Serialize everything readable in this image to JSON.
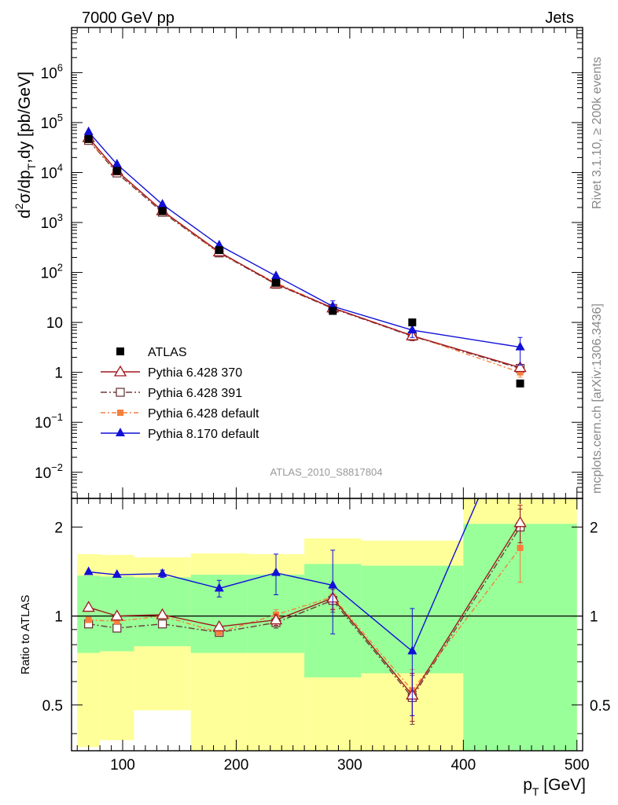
{
  "header": {
    "left": "7000 GeV pp",
    "right": "Jets"
  },
  "side_text": {
    "top": "Rivet 3.1.10, ≥ 200k events",
    "bottom": "mcplots.cern.ch [arXiv:1306.3436]"
  },
  "analysis_label": "ATLAS_2010_S8817804",
  "y_top_label": {
    "pre": "d",
    "sup": "2",
    "mid": "σ/dp",
    "sub": "T",
    "post": ",dy [pb/GeV]"
  },
  "y_bottom_label": "Ratio to ATLAS",
  "x_label": {
    "main": "p",
    "sub": "T",
    "post": " [GeV]"
  },
  "top_tick_labels": [
    {
      "v": 1000000.0,
      "base": "10",
      "exp": "6"
    },
    {
      "v": 100000.0,
      "base": "10",
      "exp": "5"
    },
    {
      "v": 10000.0,
      "base": "10",
      "exp": "4"
    },
    {
      "v": 1000.0,
      "base": "10",
      "exp": "3"
    },
    {
      "v": 100.0,
      "base": "10",
      "exp": "2"
    },
    {
      "v": 10,
      "base": "10",
      "exp": ""
    },
    {
      "v": 1,
      "base": "1",
      "exp": ""
    },
    {
      "v": 0.1,
      "base": "10",
      "exp": "−1"
    },
    {
      "v": 0.01,
      "base": "10",
      "exp": "−2"
    }
  ],
  "ratio_tick_labels": [
    {
      "v": 2,
      "text": "2"
    },
    {
      "v": 1,
      "text": "1"
    },
    {
      "v": 0.5,
      "text": "0.5"
    }
  ],
  "x_tick_labels": [
    {
      "v": 100,
      "text": "100"
    },
    {
      "v": 200,
      "text": "200"
    },
    {
      "v": 300,
      "text": "300"
    },
    {
      "v": 400,
      "text": "400"
    },
    {
      "v": 500,
      "text": "500"
    }
  ],
  "colors": {
    "atlas": "#000000",
    "p370": "#a0171d",
    "p391": "#6b3a3a",
    "pdef": "#f77f3c",
    "p8": "#1010d8",
    "band_inner": "#99ff99",
    "band_outer": "#ffff99"
  },
  "chart_data": [
    {
      "type": "line",
      "panel": "main",
      "log_y": true,
      "xlim": [
        55,
        505
      ],
      "ylim": [
        0.003,
        8000000
      ],
      "x": [
        70,
        95,
        135,
        185,
        235,
        285,
        355,
        450
      ],
      "legend_placement": "lower-left",
      "series": [
        {
          "name": "ATLAS",
          "style": "data",
          "values": [
            47000,
            10800,
            1700,
            280,
            62,
            17,
            10,
            0.6
          ],
          "err": [
            0,
            0,
            0,
            0,
            0,
            0,
            0,
            0
          ]
        },
        {
          "name": "Pythia 6.428 370",
          "style": "open-triangle",
          "values": [
            50000,
            10800,
            1720,
            258,
            59,
            19.5,
            5.4,
            1.25
          ],
          "err": [
            0,
            0,
            0,
            0,
            0,
            3,
            1,
            0.2
          ]
        },
        {
          "name": "Pythia 6.428 391",
          "style": "open-square",
          "values": [
            44000,
            9800,
            1600,
            246,
            58,
            19,
            5.3,
            1.2
          ],
          "err": [
            0,
            0,
            0,
            0,
            0,
            3,
            1,
            0.2
          ]
        },
        {
          "name": "Pythia 6.428 default",
          "style": "filled-square-dash",
          "values": [
            45000,
            10400,
            1690,
            247,
            62,
            19.5,
            5.5,
            1.0
          ],
          "err": [
            0,
            0,
            0,
            0,
            0,
            3,
            1,
            0.2
          ]
        },
        {
          "name": "Pythia 8.170 default",
          "style": "filled-triangle",
          "values": [
            65000,
            14600,
            2300,
            350,
            85,
            21,
            7,
            3.2
          ],
          "err": [
            0,
            0,
            0,
            0,
            0,
            6,
            2,
            1.8
          ]
        }
      ]
    },
    {
      "type": "line",
      "panel": "ratio",
      "log_y": true,
      "xlim": [
        55,
        505
      ],
      "ylim": [
        0.35,
        2.5
      ],
      "reference": 1,
      "x": [
        70,
        95,
        135,
        185,
        235,
        285,
        355,
        450
      ],
      "band_bins": [
        {
          "lo": 60,
          "hi": 80,
          "inner": [
            0.75,
            1.37
          ],
          "outer": [
            0.36,
            1.62
          ]
        },
        {
          "lo": 80,
          "hi": 110,
          "inner": [
            0.76,
            1.36
          ],
          "outer": [
            0.38,
            1.61
          ]
        },
        {
          "lo": 110,
          "hi": 160,
          "inner": [
            0.79,
            1.35
          ],
          "outer": [
            0.48,
            1.58
          ]
        },
        {
          "lo": 160,
          "hi": 210,
          "inner": [
            0.75,
            1.38
          ],
          "outer": [
            0.35,
            1.63
          ]
        },
        {
          "lo": 210,
          "hi": 260,
          "inner": [
            0.75,
            1.38
          ],
          "outer": [
            0.35,
            1.62
          ]
        },
        {
          "lo": 260,
          "hi": 310,
          "inner": [
            0.62,
            1.5
          ],
          "outer": [
            0.35,
            1.83
          ]
        },
        {
          "lo": 310,
          "hi": 400,
          "inner": [
            0.64,
            1.48
          ],
          "outer": [
            0.35,
            1.8
          ]
        },
        {
          "lo": 400,
          "hi": 500,
          "inner": [
            0.35,
            2.05
          ],
          "outer": [
            0.35,
            2.5
          ]
        }
      ],
      "series": [
        {
          "name": "Pythia 6.428 370",
          "values": [
            1.07,
            1.0,
            1.01,
            0.92,
            0.97,
            1.15,
            0.54,
            2.07
          ],
          "err": [
            0,
            0,
            0,
            0,
            0.04,
            0.1,
            0.1,
            0.3
          ]
        },
        {
          "name": "Pythia 6.428 391",
          "values": [
            0.94,
            0.91,
            0.94,
            0.88,
            0.95,
            1.13,
            0.53,
            2.0
          ],
          "err": [
            0,
            0,
            0,
            0,
            0.04,
            0.1,
            0.1,
            0.3
          ]
        },
        {
          "name": "Pythia 6.428 default",
          "values": [
            0.97,
            0.96,
            1.0,
            0.88,
            1.01,
            1.16,
            0.56,
            1.7
          ],
          "err": [
            0,
            0,
            0,
            0,
            0.04,
            0.1,
            0.1,
            0.4
          ]
        },
        {
          "name": "Pythia 8.170 default",
          "values": [
            1.41,
            1.38,
            1.39,
            1.24,
            1.4,
            1.27,
            0.76,
            5.3
          ],
          "err": [
            0,
            0,
            0.04,
            0.08,
            0.22,
            0.4,
            0.3,
            0
          ]
        }
      ]
    }
  ]
}
